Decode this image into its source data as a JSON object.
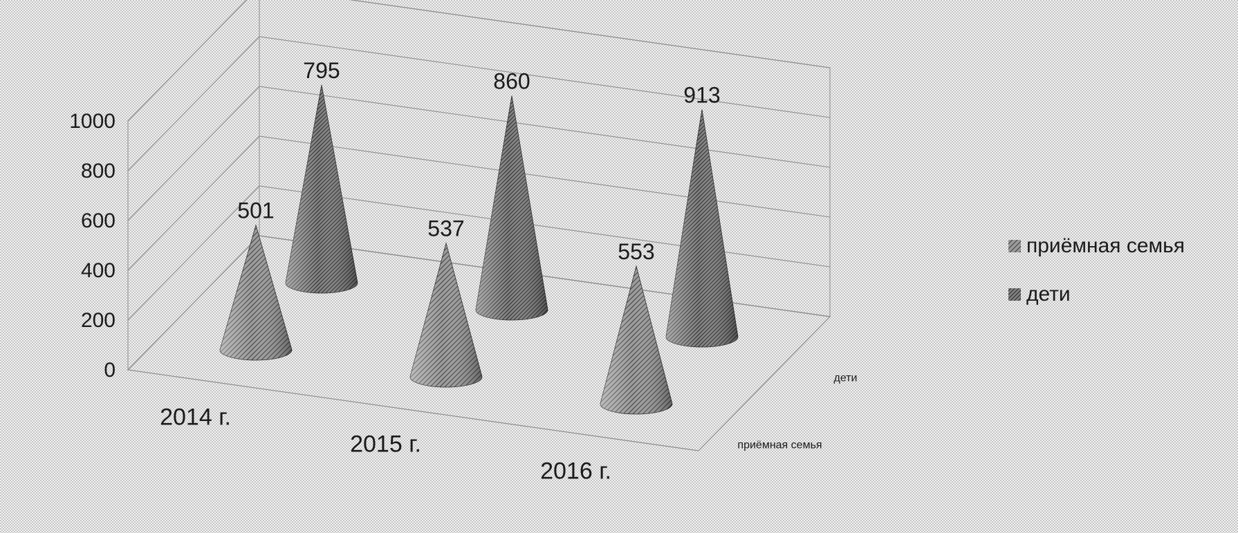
{
  "chart_data": {
    "type": "bar",
    "style": "3d-cone",
    "categories": [
      "2014 г.",
      "2015 г.",
      "2016 г."
    ],
    "series": [
      {
        "name": "приёмная семья",
        "values": [
          501,
          537,
          553
        ],
        "color": "#7a7a7a"
      },
      {
        "name": "дети",
        "values": [
          795,
          860,
          913
        ],
        "color": "#5e5e5e"
      }
    ],
    "y_ticks": [
      "0",
      "200",
      "400",
      "600",
      "800",
      "1000"
    ],
    "ylim": [
      0,
      1000
    ],
    "depth_axis_labels": [
      "дети",
      "приёмная семья"
    ],
    "grid": true,
    "legend": "right",
    "background": "#ffffff",
    "pattern": "dotted halftone"
  }
}
